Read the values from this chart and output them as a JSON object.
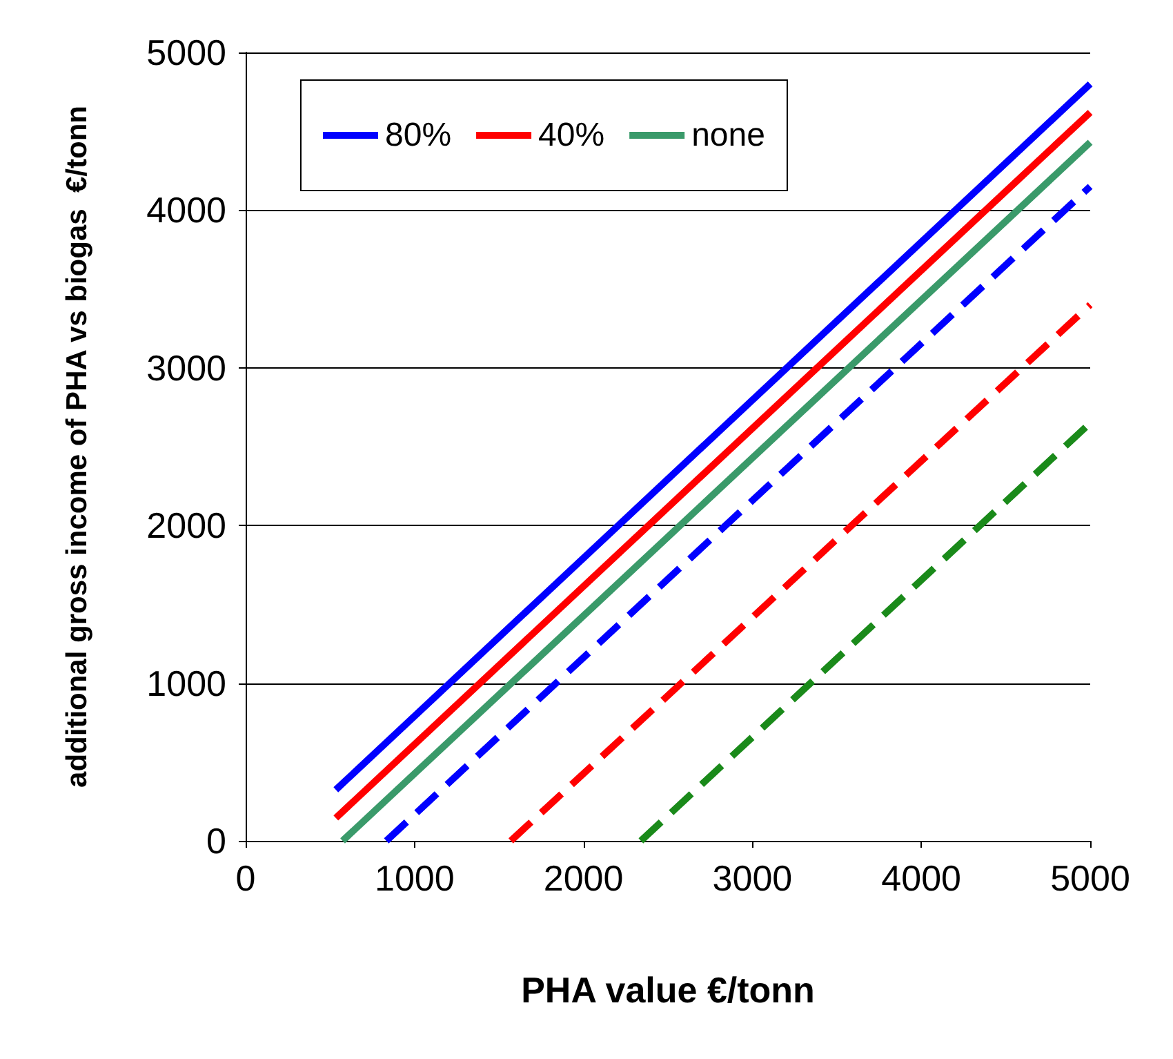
{
  "chart_data": {
    "type": "line",
    "xlabel": "PHA value €/tonn",
    "ylabel": "additional gross income of PHA vs biogas  €/tonn",
    "series": [
      {
        "name": "80%",
        "color": "#0000ff",
        "line_style": "solid",
        "x": [
          534,
          5000
        ],
        "values": [
          324,
          4800
        ]
      },
      {
        "name": "40%",
        "color": "#ff0000",
        "line_style": "solid",
        "x": [
          534,
          5000
        ],
        "values": [
          145,
          4620
        ]
      },
      {
        "name": "none",
        "color": "#3a9a6a",
        "line_style": "solid",
        "x": [
          574,
          5000
        ],
        "values": [
          0,
          4430
        ]
      },
      {
        "color": "#0000ff",
        "line_style": "dashed",
        "x": [
          833,
          5000
        ],
        "values": [
          0,
          4150
        ]
      },
      {
        "color": "#ff0000",
        "line_style": "dashed",
        "x": [
          1570,
          5000
        ],
        "values": [
          0,
          3400
        ]
      },
      {
        "color": "#1a8a1a",
        "line_style": "dashed",
        "x": [
          2340,
          5000
        ],
        "values": [
          0,
          2650
        ]
      }
    ],
    "xlim": [
      0,
      5000
    ],
    "xticks": [
      0,
      1000,
      2000,
      3000,
      4000,
      5000
    ],
    "ylim": [
      0,
      5000
    ],
    "yticks": [
      0,
      1000,
      2000,
      3000,
      4000,
      5000
    ],
    "grid": "y",
    "legend": "top left",
    "marker": "none"
  }
}
